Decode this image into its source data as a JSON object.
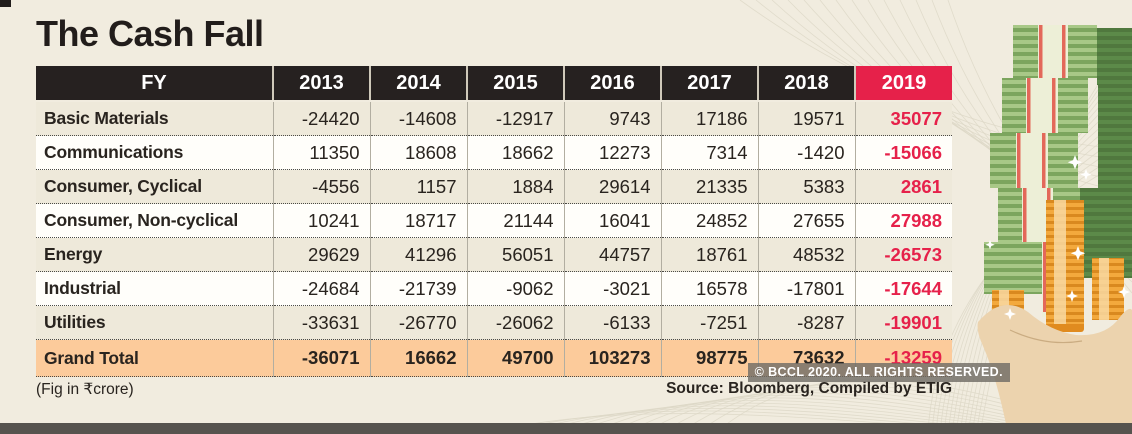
{
  "page": {
    "title": "The Cash Fall",
    "fig_note": "(Fig in ₹crore)",
    "source": "Source: Bloomberg, Compiled by ETIG",
    "watermark": "© BCCL 2020. ALL RIGHTS RESERVED."
  },
  "chart_data": {
    "type": "table",
    "title": "The Cash Fall",
    "unit": "₹ crore",
    "columns": [
      "FY",
      "2013",
      "2014",
      "2015",
      "2016",
      "2017",
      "2018",
      "2019"
    ],
    "highlight_column": "2019",
    "rows": [
      {
        "label": "Basic Materials",
        "values": [
          -24420,
          -14608,
          -12917,
          9743,
          17186,
          19571,
          35077
        ]
      },
      {
        "label": "Communications",
        "values": [
          11350,
          18608,
          18662,
          12273,
          7314,
          -1420,
          -15066
        ]
      },
      {
        "label": "Consumer, Cyclical",
        "values": [
          -4556,
          1157,
          1884,
          29614,
          21335,
          5383,
          2861
        ]
      },
      {
        "label": "Consumer, Non-cyclical",
        "values": [
          10241,
          18717,
          21144,
          16041,
          24852,
          27655,
          27988
        ]
      },
      {
        "label": "Energy",
        "values": [
          29629,
          41296,
          56051,
          44757,
          18761,
          48532,
          -26573
        ]
      },
      {
        "label": "Industrial",
        "values": [
          -24684,
          -21739,
          -9062,
          -3021,
          16578,
          -17801,
          -17644
        ]
      },
      {
        "label": "Utilities",
        "values": [
          -33631,
          -26770,
          -26062,
          -6133,
          -7251,
          -8287,
          -19901
        ]
      },
      {
        "label": "Grand Total",
        "values": [
          -36071,
          16662,
          49700,
          103273,
          98775,
          73632,
          -13259
        ],
        "total": true
      }
    ]
  },
  "colors": {
    "page_bg": "#f1ecdf",
    "header_bg": "#262120",
    "accent_red": "#e6214a",
    "row_alt_bg": "#eee9da",
    "total_row_bg": "#fccb9b",
    "note_green_light": "#a8c887",
    "note_green_dark": "#5c8a49",
    "band_cream": "#edefd7",
    "band_red": "#e3685a",
    "coin_orange": "#f3a93d",
    "hand_skin": "#ecd3ae"
  },
  "illustration": {
    "parts": [
      "money-note-stacks",
      "gold-coin-stacks",
      "open-hand",
      "sparkles"
    ]
  }
}
